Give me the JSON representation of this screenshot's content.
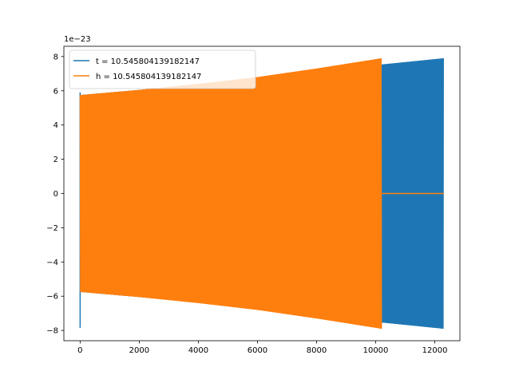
{
  "chart_data": {
    "type": "line",
    "title": "",
    "xlabel": "",
    "ylabel": "",
    "y_offset_text": "1e−23",
    "xlim": [
      -550,
      12850
    ],
    "ylim": [
      -8.6,
      8.6
    ],
    "x_ticks": [
      {
        "value": 0,
        "label": "0"
      },
      {
        "value": 2000,
        "label": "2000"
      },
      {
        "value": 4000,
        "label": "4000"
      },
      {
        "value": 6000,
        "label": "6000"
      },
      {
        "value": 8000,
        "label": "8000"
      },
      {
        "value": 10000,
        "label": "10000"
      },
      {
        "value": 12000,
        "label": "12000"
      }
    ],
    "y_ticks": [
      {
        "value": -8,
        "label": "−8"
      },
      {
        "value": -6,
        "label": "−6"
      },
      {
        "value": -4,
        "label": "−4"
      },
      {
        "value": -2,
        "label": "−2"
      },
      {
        "value": 0,
        "label": "0"
      },
      {
        "value": 2,
        "label": "2"
      },
      {
        "value": 4,
        "label": "4"
      },
      {
        "value": 6,
        "label": "6"
      },
      {
        "value": 8,
        "label": "8"
      }
    ],
    "grid": false,
    "legend_position": "upper-left",
    "series": [
      {
        "name": "t = 10.545804139182147",
        "color": "#1f77b4",
        "kind": "oscillation",
        "envelope_x": [
          0,
          2000,
          4000,
          6000,
          8000,
          10000,
          12300
        ],
        "envelope_amp": [
          5.75,
          6.05,
          6.35,
          6.7,
          7.1,
          7.5,
          7.9
        ],
        "spike": {
          "x": 0,
          "min": -7.85,
          "max": 5.9
        },
        "x_range": [
          0,
          12300
        ]
      },
      {
        "name": "h = 10.545804139182147",
        "color": "#ff7f0e",
        "kind": "oscillation",
        "envelope_x": [
          0,
          2000,
          4000,
          6000,
          8000,
          10200
        ],
        "envelope_amp": [
          5.75,
          6.05,
          6.4,
          6.8,
          7.3,
          7.9
        ],
        "x_range": [
          0,
          10200
        ],
        "tail_zero_range": [
          10200,
          12300
        ]
      }
    ]
  }
}
